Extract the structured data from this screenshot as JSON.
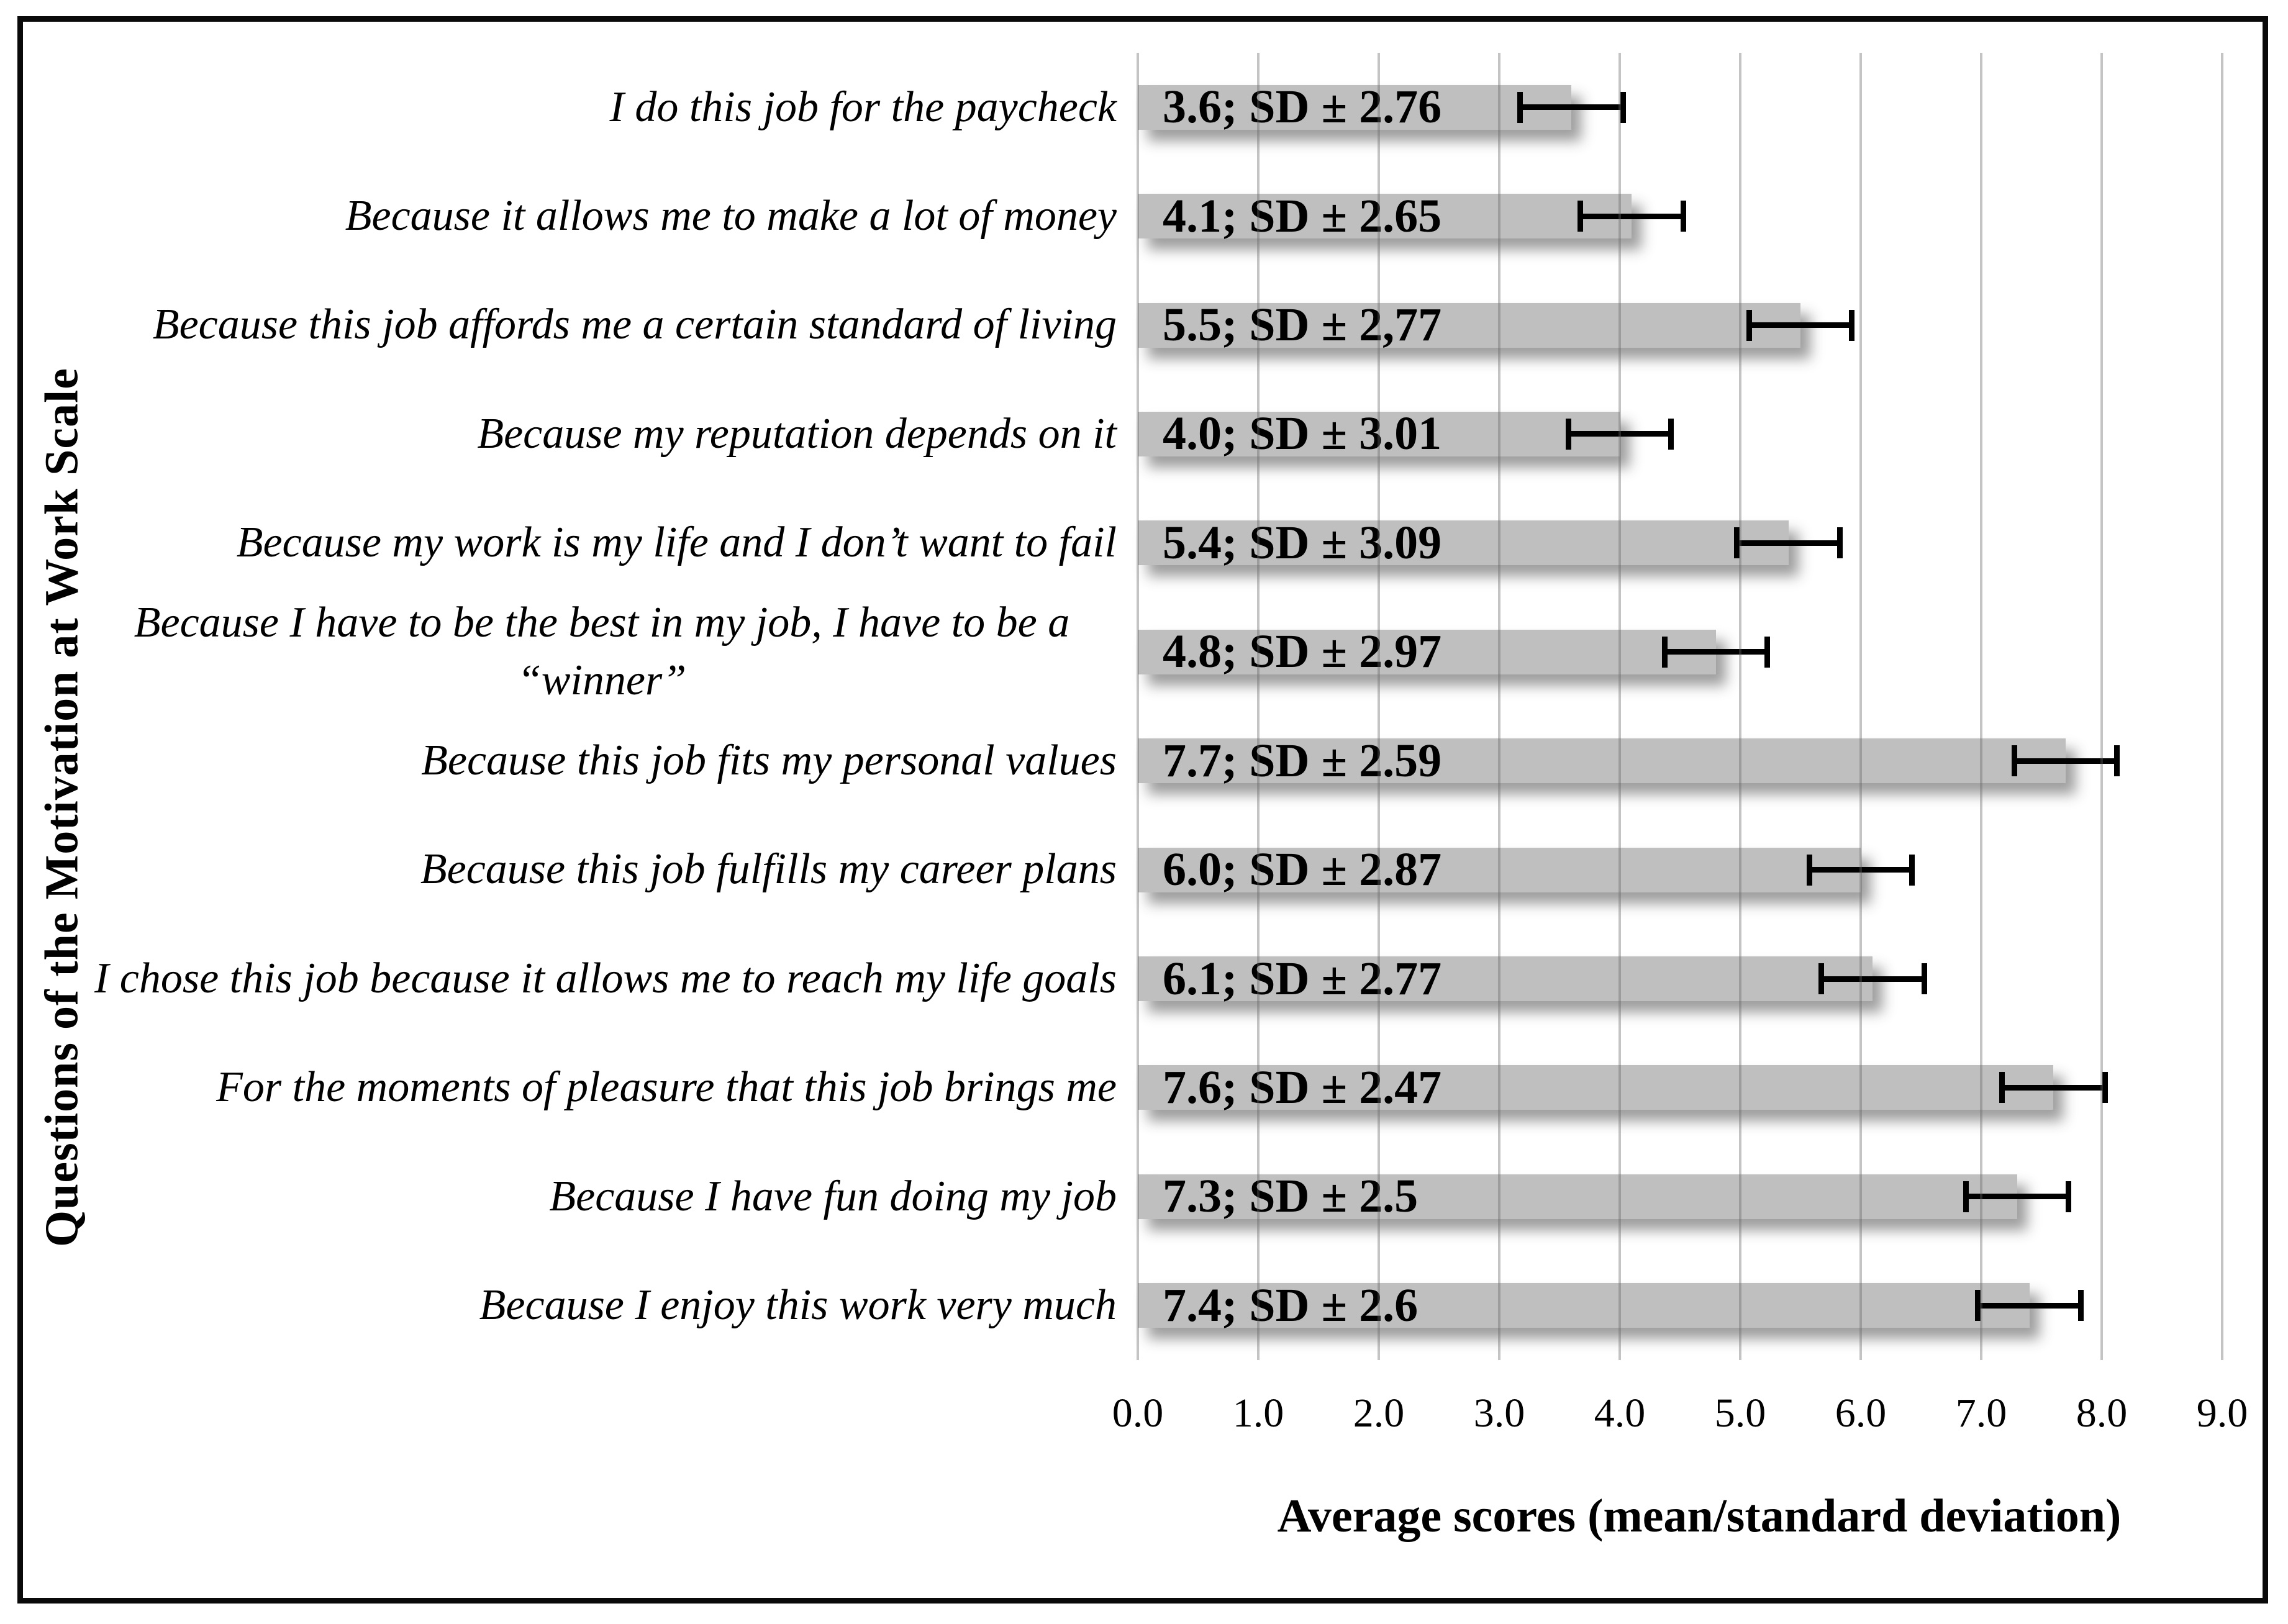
{
  "figure": {
    "y_axis_title": "Questions of the Motivation at Work Scale",
    "x_axis_title": "Average scores (mean/standard deviation)"
  },
  "chart_data": {
    "type": "bar",
    "orientation": "horizontal",
    "title": "",
    "xlabel": "Average scores (mean/standard deviation)",
    "ylabel": "Questions of the Motivation at Work Scale",
    "categories": [
      "I do this job for the paycheck",
      "Because it allows me to make a lot of money",
      "Because this job affords me a certain standard of living",
      "Because my reputation depends on it",
      "Because my work is my life and I don’t want to fail",
      "Because I have to be the best in my job, I have to be a “winner”",
      "Because this job fits my personal values",
      "Because this job fulfills my career plans",
      "I chose this job because it allows me to reach my life goals",
      "For the moments of pleasure that this job brings me",
      "Because I have fun doing my job",
      "Because I enjoy this work very much"
    ],
    "values": [
      3.6,
      4.1,
      5.5,
      4.0,
      5.4,
      4.8,
      7.7,
      6.0,
      6.1,
      7.6,
      7.3,
      7.4
    ],
    "sd": [
      2.76,
      2.65,
      2.77,
      3.01,
      3.09,
      2.97,
      2.59,
      2.87,
      2.77,
      2.47,
      2.5,
      2.6
    ],
    "bar_labels": [
      "3.6; SD ± 2.76",
      "4.1; SD ± 2.65",
      "5.5; SD ± 2,77",
      "4.0; SD ± 3.01",
      "5.4; SD ± 3.09",
      "4.8; SD ± 2.97",
      "7.7; SD ± 2.59",
      "6.0; SD ± 2.87",
      "6.1; SD ± 2.77",
      "7.6; SD ± 2.47",
      "7.3; SD ± 2.5",
      "7.4; SD ± 2.6"
    ],
    "error_bar_halfwidth_estimate": 0.45,
    "x_ticks": [
      "0.0",
      "1.0",
      "2.0",
      "3.0",
      "4.0",
      "5.0",
      "6.0",
      "7.0",
      "8.0",
      "9.0"
    ],
    "xlim": [
      0,
      9.5
    ],
    "grid": "vertical gridlines at 1.0 intervals",
    "legend": "none",
    "bar_color": "#bfbfbf",
    "gridline_color": "#c6c6c6",
    "text_color": "#000000",
    "frame_color": "#0a0a0a"
  }
}
